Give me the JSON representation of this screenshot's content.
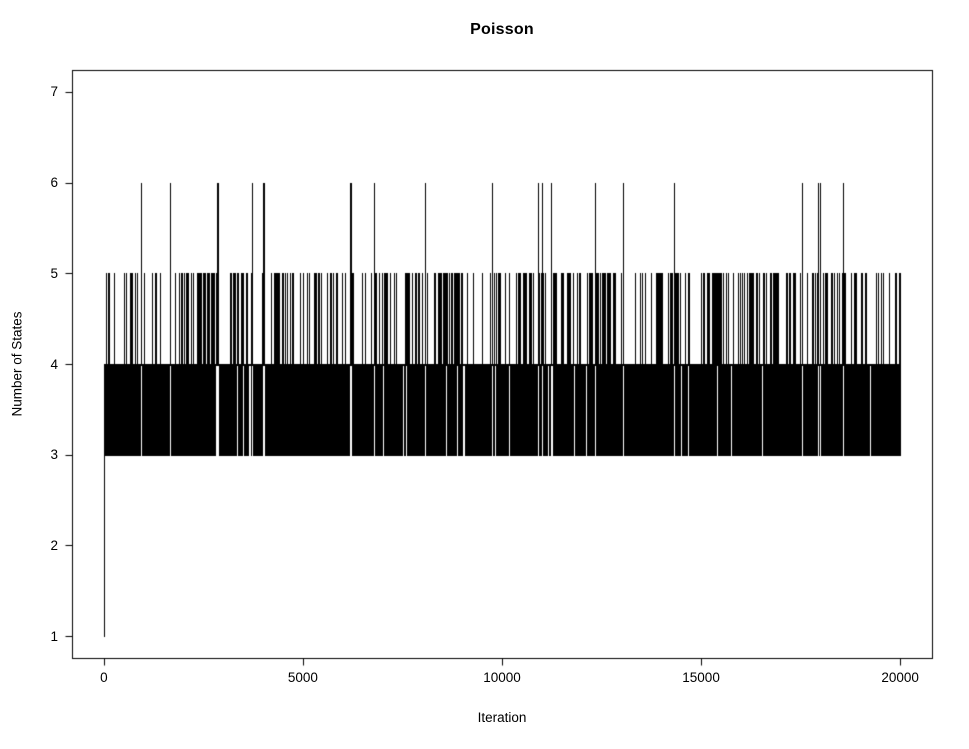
{
  "chart_data": {
    "type": "line",
    "subtype": "mcmc-trace",
    "title": "Poisson",
    "xlabel": "Iteration",
    "ylabel": "Number of States",
    "x_ticks": [
      0,
      5000,
      10000,
      15000,
      20000
    ],
    "y_ticks": [
      1,
      2,
      3,
      4,
      5,
      6,
      7
    ],
    "x_range": [
      -800,
      20800
    ],
    "y_range": [
      0.76,
      7.24
    ],
    "n_iterations": 20000,
    "start_value": 1,
    "dominant_band": [
      3,
      4
    ],
    "occasional_level": 5,
    "five_visit_fraction": 0.42,
    "rare_level": 6,
    "six_visit_iterations": [
      930,
      1660,
      2830,
      2860,
      3720,
      3990,
      4020,
      6180,
      6210,
      6790,
      8070,
      9750,
      10900,
      11000,
      11230,
      12340,
      13040,
      14330,
      17540,
      17940,
      17990,
      18570
    ],
    "four_plateau_iterations": [
      3340,
      3490,
      3650,
      7010,
      7510,
      8870,
      9020,
      9820,
      10180,
      11160,
      14670,
      15400,
      19250
    ],
    "line_color": "#000000",
    "background_color": "#ffffff",
    "grid": false,
    "legend": false
  }
}
